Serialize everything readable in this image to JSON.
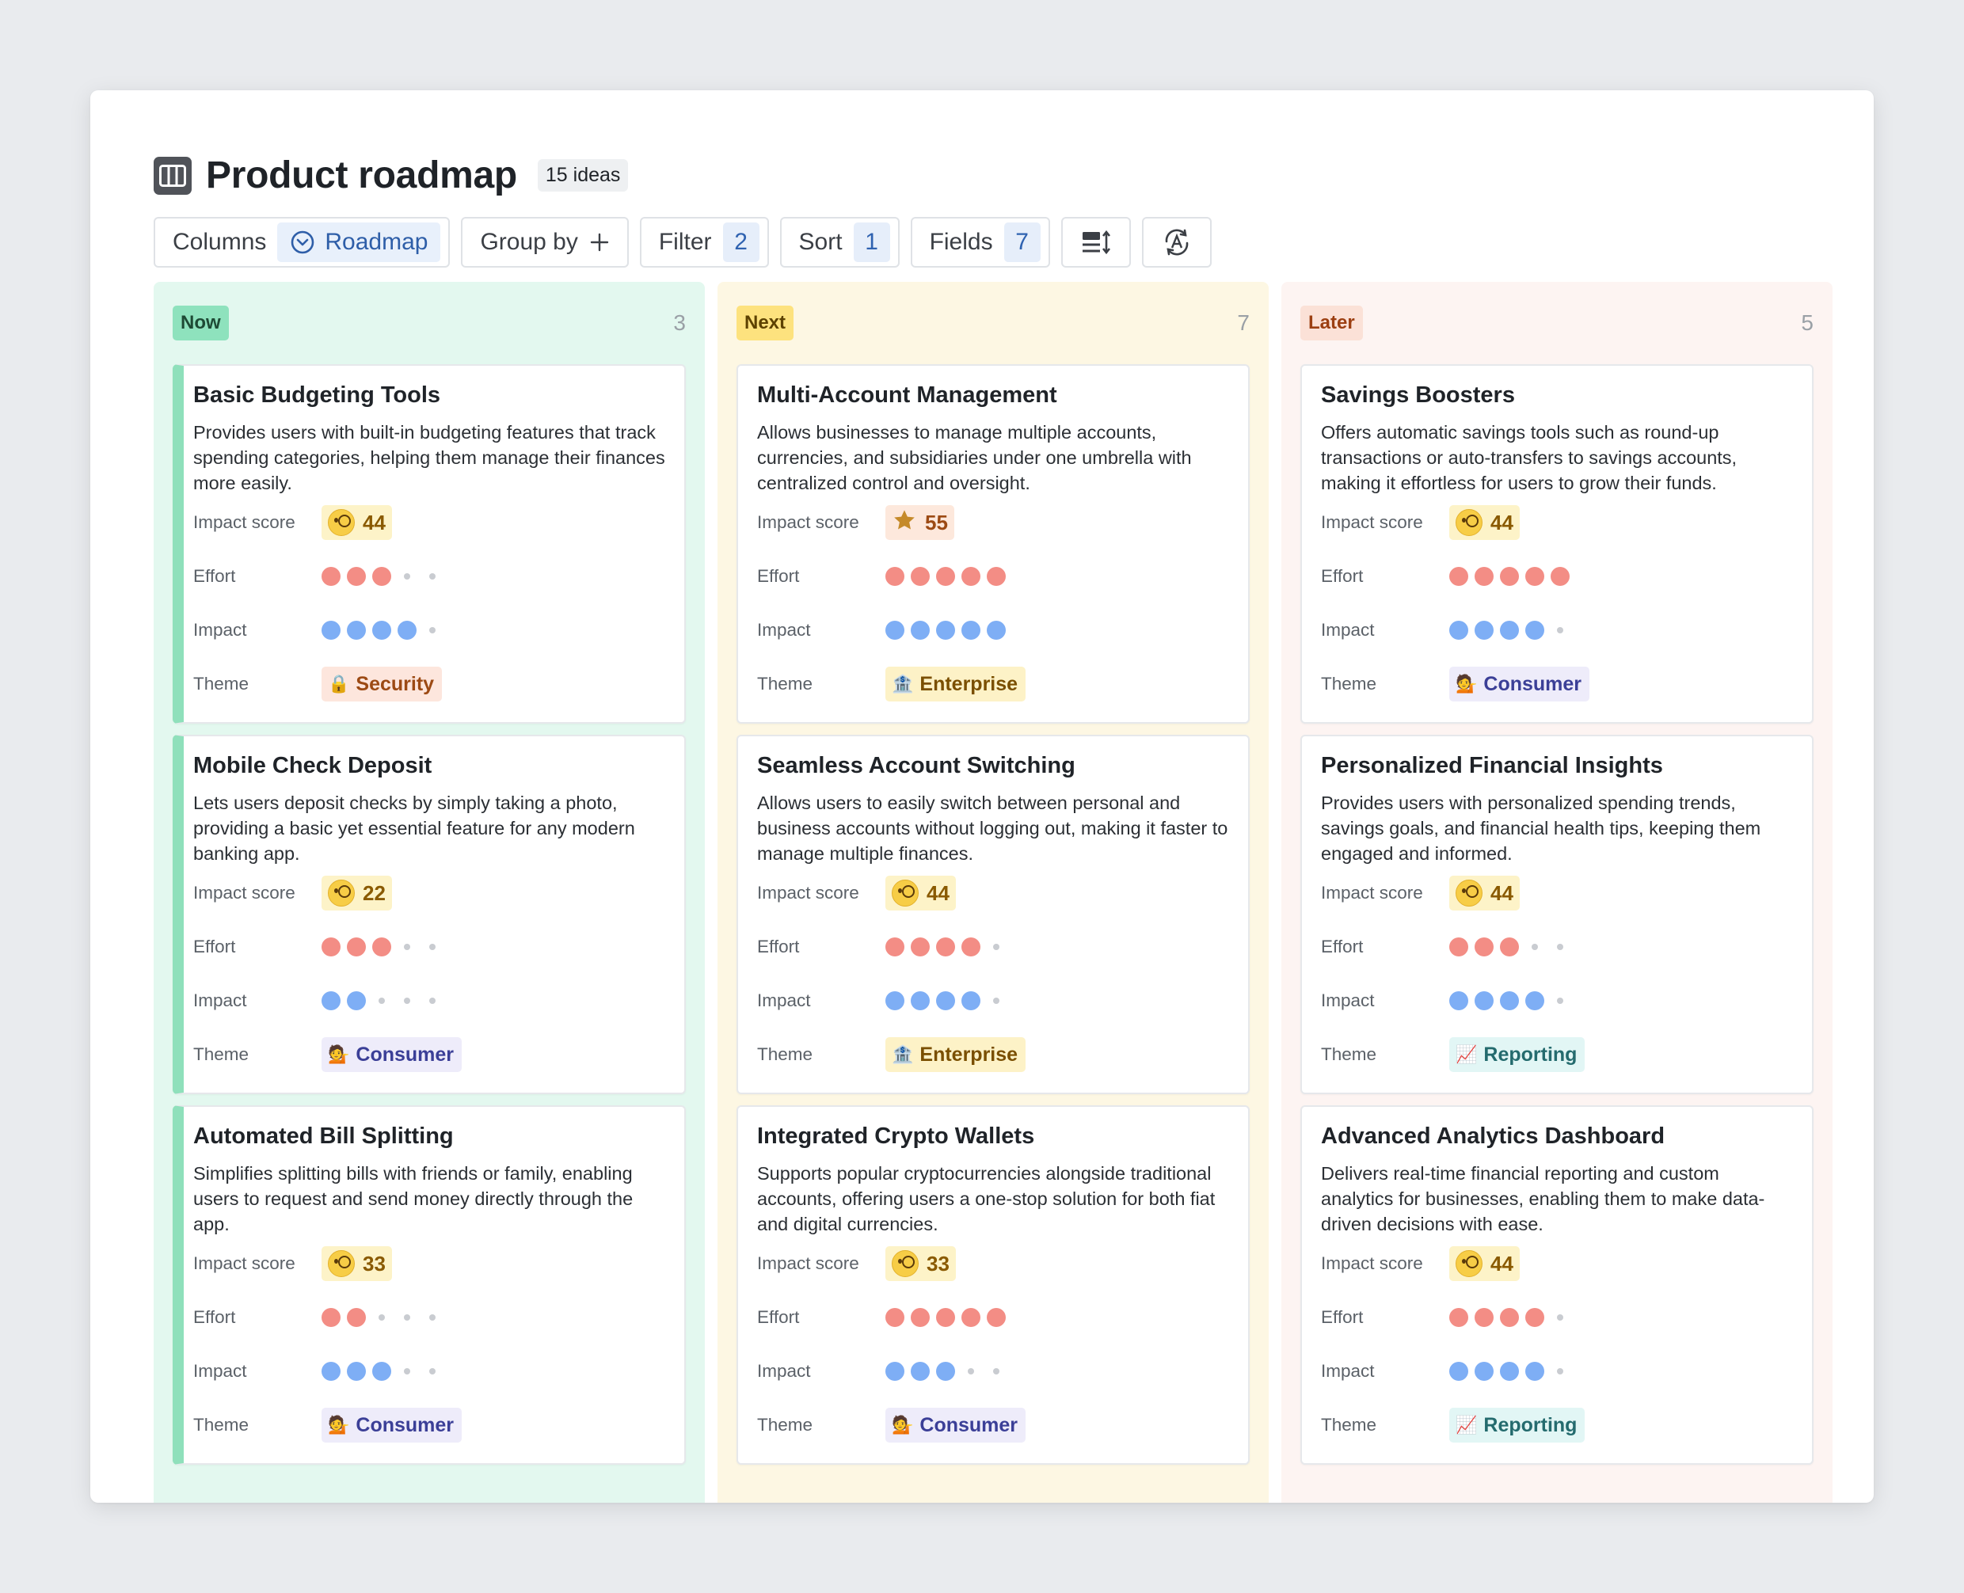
{
  "header": {
    "title": "Product roadmap",
    "count": "15 ideas"
  },
  "toolbar": {
    "columns_label": "Columns",
    "columns_value": "Roadmap",
    "group_label": "Group by",
    "filter_label": "Filter",
    "filter_count": "2",
    "sort_label": "Sort",
    "sort_count": "1",
    "fields_label": "Fields",
    "fields_count": "7"
  },
  "field_labels": {
    "score": "Impact score",
    "effort": "Effort",
    "impact": "Impact",
    "theme": "Theme"
  },
  "columns": [
    {
      "name": "Now",
      "count": "3",
      "cards": [
        {
          "title": "Basic Budgeting Tools",
          "description": "Provides users with built-in budgeting features that track spending categories, helping them manage their finances more easily.",
          "score": "44",
          "effort": 3,
          "impact": 4,
          "theme": "Security"
        },
        {
          "title": "Mobile Check Deposit",
          "description": "Lets users deposit checks by simply taking a photo, providing a basic yet essential feature for any modern banking app.",
          "score": "22",
          "effort": 3,
          "impact": 2,
          "theme": "Consumer"
        },
        {
          "title": "Automated Bill Splitting",
          "description": "Simplifies splitting bills with friends or family, enabling users to request and send money directly through the app.",
          "score": "33",
          "effort": 2,
          "impact": 3,
          "theme": "Consumer"
        }
      ]
    },
    {
      "name": "Next",
      "count": "7",
      "cards": [
        {
          "title": "Multi-Account Management",
          "description": "Allows businesses to manage multiple accounts, currencies, and subsidiaries under one umbrella with centralized control and oversight.",
          "score": "55",
          "effort": 5,
          "impact": 5,
          "theme": "Enterprise"
        },
        {
          "title": "Seamless Account Switching",
          "description": "Allows users to easily switch between personal and business accounts without logging out, making it faster to manage multiple finances.",
          "score": "44",
          "effort": 4,
          "impact": 4,
          "theme": "Enterprise"
        },
        {
          "title": "Integrated Crypto Wallets",
          "description": "Supports popular cryptocurrencies alongside traditional accounts, offering users a one-stop solution for both fiat and digital currencies.",
          "score": "33",
          "effort": 5,
          "impact": 3,
          "theme": "Consumer"
        }
      ]
    },
    {
      "name": "Later",
      "count": "5",
      "cards": [
        {
          "title": "Savings Boosters",
          "description": "Offers automatic savings tools such as round-up transactions or auto-transfers to savings accounts, making it effortless for users to grow their funds.",
          "score": "44",
          "effort": 5,
          "impact": 4,
          "theme": "Consumer"
        },
        {
          "title": "Personalized Financial Insights",
          "description": "Provides users with personalized spending trends, savings goals, and financial health tips, keeping them engaged and informed.",
          "score": "44",
          "effort": 3,
          "impact": 4,
          "theme": "Reporting"
        },
        {
          "title": "Advanced Analytics Dashboard",
          "description": "Delivers real-time financial reporting and custom analytics for businesses, enabling them to make data-driven decisions with ease.",
          "score": "44",
          "effort": 4,
          "impact": 4,
          "theme": "Reporting"
        }
      ]
    }
  ]
}
